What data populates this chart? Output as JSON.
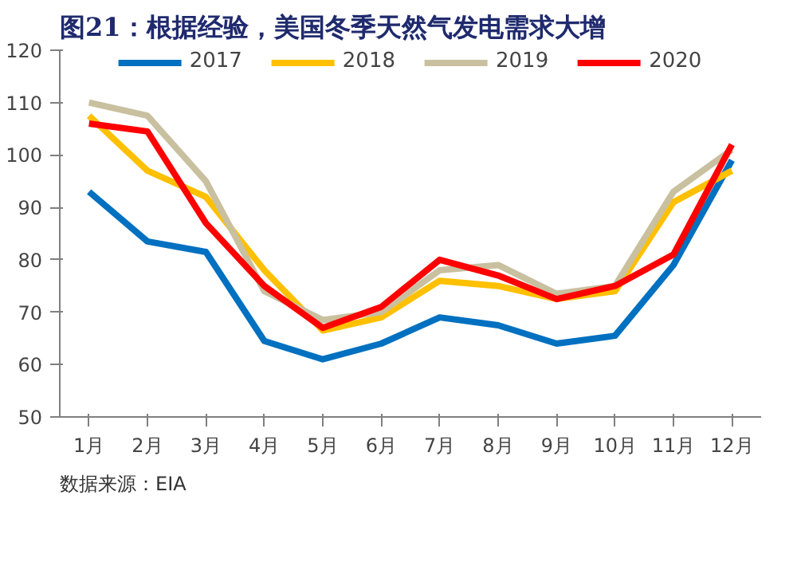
{
  "chart_data": {
    "type": "line",
    "title": "图21：根据经验，美国冬季天然气发电需求大增",
    "categories": [
      "1月",
      "2月",
      "3月",
      "4月",
      "5月",
      "6月",
      "7月",
      "8月",
      "9月",
      "10月",
      "11月",
      "12月"
    ],
    "series": [
      {
        "name": "2017",
        "color": "#0070c0",
        "values": [
          93,
          83.5,
          81.5,
          64.5,
          61,
          64,
          69,
          67.5,
          64,
          65.5,
          79,
          99
        ]
      },
      {
        "name": "2018",
        "color": "#ffc000",
        "values": [
          107.5,
          97,
          92,
          78,
          66.5,
          69,
          76,
          75,
          72.5,
          74,
          91,
          97
        ]
      },
      {
        "name": "2019",
        "color": "#c9c0a0",
        "values": [
          110,
          107.5,
          95,
          74,
          68.5,
          70,
          78,
          79,
          73.5,
          75,
          93,
          101
        ]
      },
      {
        "name": "2020",
        "color": "#ff0000",
        "values": [
          106,
          104.5,
          87,
          75,
          67,
          71,
          80,
          77,
          72.5,
          75,
          81,
          102
        ]
      }
    ],
    "ylim": [
      50,
      120
    ],
    "yticks": [
      50,
      60,
      70,
      80,
      90,
      100,
      110,
      120
    ],
    "grid": false,
    "legend": "top",
    "marker": "none",
    "line_style": "solid",
    "annotations": [
      "数据来源：EIA"
    ]
  }
}
